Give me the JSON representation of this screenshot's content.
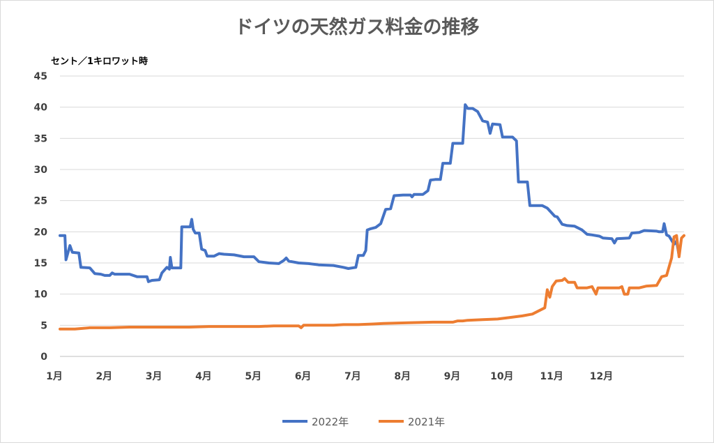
{
  "chart_data": {
    "type": "line",
    "title": "ドイツの天然ガス料金の推移",
    "ylabel": "セント／1キロワット時",
    "xlabel": "",
    "ylim": [
      0,
      45
    ],
    "yticks": [
      0,
      5,
      10,
      15,
      20,
      25,
      30,
      35,
      40,
      45
    ],
    "xlim": [
      1,
      13.2
    ],
    "xticks": [
      {
        "value": 1,
        "label": "1月"
      },
      {
        "value": 2,
        "label": "2月"
      },
      {
        "value": 3,
        "label": "3月"
      },
      {
        "value": 4,
        "label": "4月"
      },
      {
        "value": 5,
        "label": "5月"
      },
      {
        "value": 6,
        "label": "6月"
      },
      {
        "value": 7,
        "label": "7月"
      },
      {
        "value": 8,
        "label": "8月"
      },
      {
        "value": 9,
        "label": "9月"
      },
      {
        "value": 10,
        "label": "10月"
      },
      {
        "value": 11,
        "label": "11月"
      },
      {
        "value": 12,
        "label": "12月"
      }
    ],
    "grid": true,
    "legend": "bottom",
    "series": [
      {
        "name": "2022年",
        "color": "#4472c4",
        "points": [
          [
            1.0,
            19.4
          ],
          [
            1.1,
            19.4
          ],
          [
            1.12,
            15.5
          ],
          [
            1.2,
            17.8
          ],
          [
            1.25,
            16.7
          ],
          [
            1.38,
            16.6
          ],
          [
            1.42,
            14.3
          ],
          [
            1.6,
            14.2
          ],
          [
            1.7,
            13.3
          ],
          [
            1.82,
            13.2
          ],
          [
            1.9,
            13.0
          ],
          [
            2.0,
            13.0
          ],
          [
            2.05,
            13.4
          ],
          [
            2.1,
            13.2
          ],
          [
            2.4,
            13.2
          ],
          [
            2.55,
            12.8
          ],
          [
            2.75,
            12.8
          ],
          [
            2.78,
            12.0
          ],
          [
            2.85,
            12.2
          ],
          [
            3.0,
            12.3
          ],
          [
            3.05,
            13.4
          ],
          [
            3.15,
            14.3
          ],
          [
            3.2,
            14.0
          ],
          [
            3.22,
            15.9
          ],
          [
            3.25,
            14.2
          ],
          [
            3.43,
            14.2
          ],
          [
            3.45,
            20.8
          ],
          [
            3.62,
            20.8
          ],
          [
            3.65,
            22.0
          ],
          [
            3.68,
            20.4
          ],
          [
            3.72,
            19.8
          ],
          [
            3.8,
            19.8
          ],
          [
            3.85,
            17.2
          ],
          [
            3.92,
            17.0
          ],
          [
            3.96,
            16.1
          ],
          [
            4.1,
            16.1
          ],
          [
            4.2,
            16.5
          ],
          [
            4.3,
            16.4
          ],
          [
            4.5,
            16.3
          ],
          [
            4.7,
            16.0
          ],
          [
            4.9,
            16.0
          ],
          [
            5.0,
            15.2
          ],
          [
            5.2,
            15.0
          ],
          [
            5.4,
            14.9
          ],
          [
            5.5,
            15.4
          ],
          [
            5.55,
            15.8
          ],
          [
            5.6,
            15.3
          ],
          [
            5.8,
            15.0
          ],
          [
            6.0,
            14.9
          ],
          [
            6.2,
            14.7
          ],
          [
            6.5,
            14.6
          ],
          [
            6.7,
            14.3
          ],
          [
            6.8,
            14.1
          ],
          [
            6.95,
            14.3
          ],
          [
            7.0,
            16.2
          ],
          [
            7.1,
            16.2
          ],
          [
            7.15,
            17.0
          ],
          [
            7.18,
            20.3
          ],
          [
            7.25,
            20.5
          ],
          [
            7.35,
            20.7
          ],
          [
            7.45,
            21.3
          ],
          [
            7.55,
            23.6
          ],
          [
            7.65,
            23.7
          ],
          [
            7.72,
            25.8
          ],
          [
            7.9,
            25.9
          ],
          [
            8.05,
            25.9
          ],
          [
            8.08,
            25.6
          ],
          [
            8.12,
            26.0
          ],
          [
            8.3,
            26.0
          ],
          [
            8.4,
            26.6
          ],
          [
            8.45,
            28.3
          ],
          [
            8.55,
            28.4
          ],
          [
            8.65,
            28.4
          ],
          [
            8.7,
            31.0
          ],
          [
            8.85,
            31.0
          ],
          [
            8.9,
            34.2
          ],
          [
            9.1,
            34.2
          ],
          [
            9.15,
            40.4
          ],
          [
            9.2,
            39.8
          ],
          [
            9.3,
            39.8
          ],
          [
            9.4,
            39.3
          ],
          [
            9.5,
            37.8
          ],
          [
            9.6,
            37.6
          ],
          [
            9.65,
            35.8
          ],
          [
            9.7,
            37.3
          ],
          [
            9.85,
            37.2
          ],
          [
            9.9,
            35.2
          ],
          [
            10.1,
            35.2
          ],
          [
            10.18,
            34.6
          ],
          [
            10.22,
            28.0
          ],
          [
            10.4,
            28.0
          ],
          [
            10.45,
            24.2
          ],
          [
            10.7,
            24.2
          ],
          [
            10.8,
            23.8
          ],
          [
            10.95,
            22.5
          ],
          [
            11.0,
            22.4
          ],
          [
            11.1,
            21.2
          ],
          [
            11.2,
            21.0
          ],
          [
            11.35,
            20.9
          ],
          [
            11.5,
            20.3
          ],
          [
            11.6,
            19.6
          ],
          [
            11.7,
            19.5
          ],
          [
            11.85,
            19.3
          ],
          [
            11.92,
            19.0
          ],
          [
            12.1,
            18.9
          ],
          [
            12.15,
            18.2
          ],
          [
            12.2,
            18.9
          ],
          [
            12.45,
            19.0
          ],
          [
            12.5,
            19.8
          ],
          [
            12.65,
            19.9
          ],
          [
            12.75,
            20.2
          ],
          [
            13.0,
            20.1
          ],
          [
            13.05,
            20.0
          ],
          [
            13.12,
            20.0
          ],
          [
            13.15,
            21.3
          ],
          [
            13.2,
            19.5
          ],
          [
            13.25,
            19.3
          ],
          [
            13.35,
            18.0
          ],
          [
            13.4,
            18.5
          ],
          [
            13.45,
            16.2
          ]
        ]
      },
      {
        "name": "2021年",
        "color": "#ed7d31",
        "points": [
          [
            1.0,
            4.4
          ],
          [
            1.3,
            4.4
          ],
          [
            1.6,
            4.6
          ],
          [
            2.0,
            4.6
          ],
          [
            2.4,
            4.7
          ],
          [
            3.0,
            4.7
          ],
          [
            3.6,
            4.7
          ],
          [
            4.0,
            4.8
          ],
          [
            4.5,
            4.8
          ],
          [
            5.0,
            4.8
          ],
          [
            5.3,
            4.9
          ],
          [
            5.8,
            4.9
          ],
          [
            5.85,
            4.6
          ],
          [
            5.9,
            5.0
          ],
          [
            6.5,
            5.0
          ],
          [
            6.7,
            5.1
          ],
          [
            7.0,
            5.1
          ],
          [
            7.3,
            5.2
          ],
          [
            7.5,
            5.3
          ],
          [
            8.0,
            5.4
          ],
          [
            8.5,
            5.5
          ],
          [
            8.9,
            5.5
          ],
          [
            9.0,
            5.7
          ],
          [
            9.1,
            5.7
          ],
          [
            9.2,
            5.8
          ],
          [
            9.5,
            5.9
          ],
          [
            9.8,
            6.0
          ],
          [
            10.0,
            6.2
          ],
          [
            10.3,
            6.5
          ],
          [
            10.5,
            6.8
          ],
          [
            10.6,
            7.2
          ],
          [
            10.75,
            7.8
          ],
          [
            10.8,
            10.7
          ],
          [
            10.85,
            9.5
          ],
          [
            10.9,
            11.2
          ],
          [
            10.98,
            12.1
          ],
          [
            11.1,
            12.2
          ],
          [
            11.15,
            12.5
          ],
          [
            11.22,
            11.9
          ],
          [
            11.35,
            11.9
          ],
          [
            11.4,
            11.0
          ],
          [
            11.6,
            11.0
          ],
          [
            11.7,
            11.2
          ],
          [
            11.78,
            10.0
          ],
          [
            11.82,
            11.0
          ],
          [
            12.05,
            11.0
          ],
          [
            12.25,
            11.0
          ],
          [
            12.3,
            11.2
          ],
          [
            12.35,
            10.0
          ],
          [
            12.42,
            10.0
          ],
          [
            12.45,
            11.0
          ],
          [
            12.65,
            11.0
          ],
          [
            12.8,
            11.3
          ],
          [
            13.0,
            11.4
          ],
          [
            13.1,
            12.8
          ],
          [
            13.2,
            13.0
          ],
          [
            13.3,
            15.8
          ],
          [
            13.35,
            19.2
          ],
          [
            13.4,
            19.4
          ],
          [
            13.45,
            16.0
          ],
          [
            13.5,
            19.0
          ],
          [
            13.55,
            19.4
          ]
        ]
      }
    ]
  }
}
